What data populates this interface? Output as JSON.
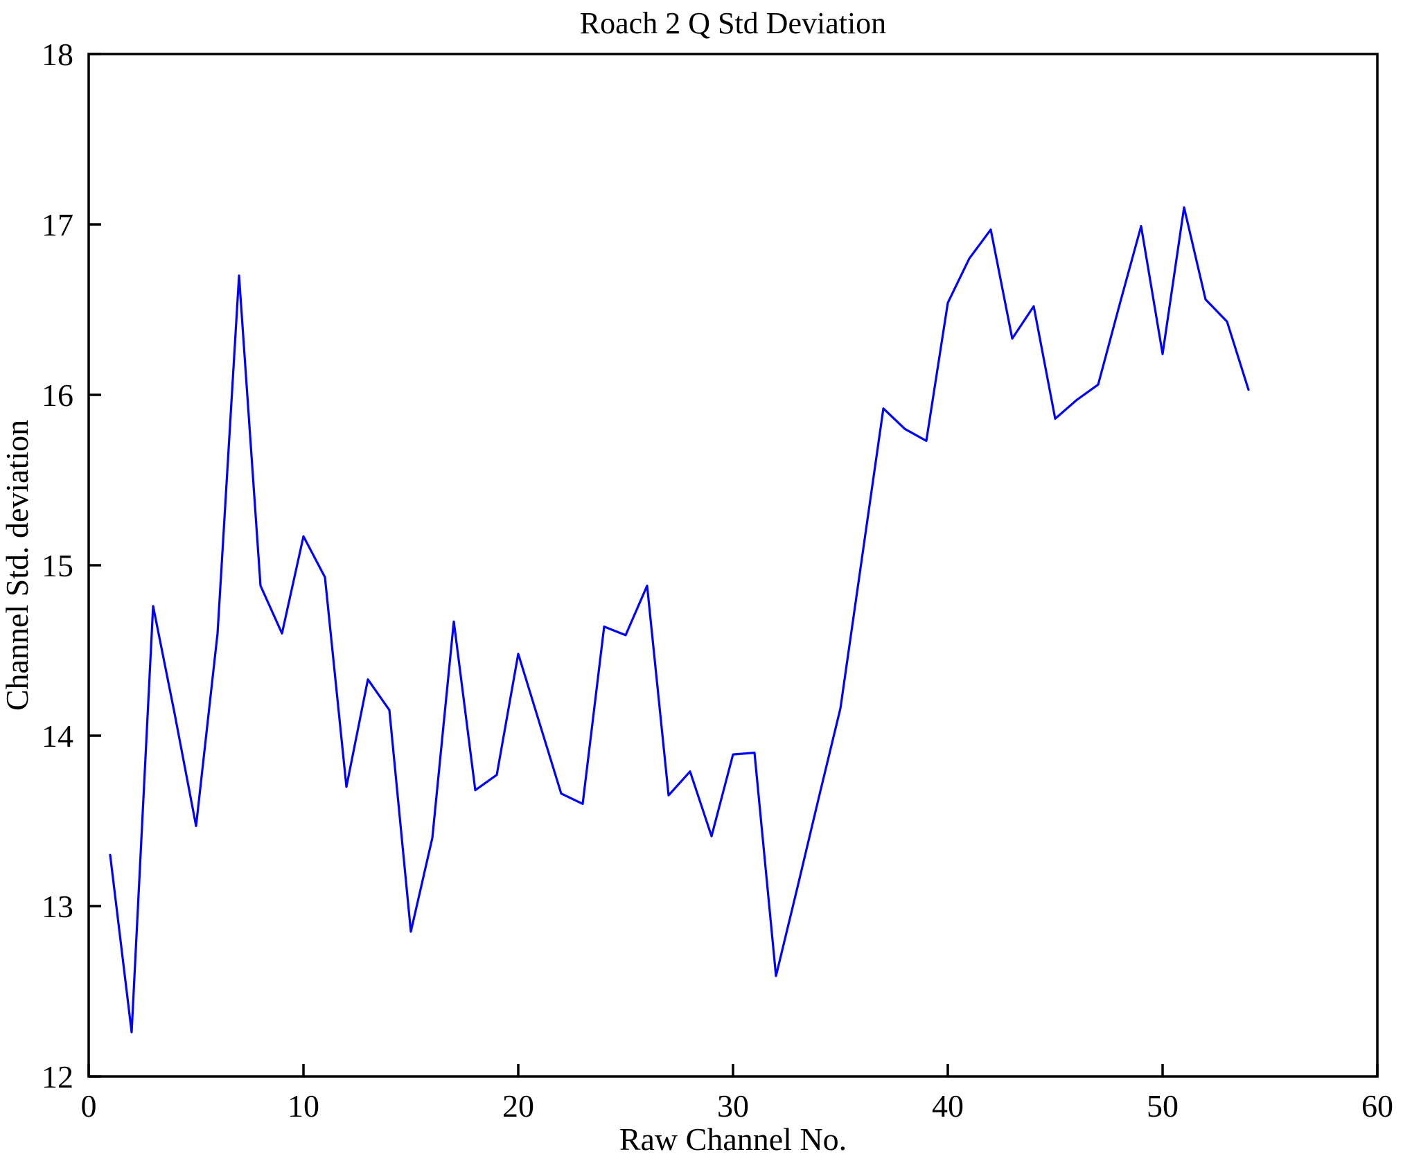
{
  "figure": {
    "background": "#ffffff",
    "axes_color": "#000000"
  },
  "chart_data": {
    "type": "line",
    "title": "Roach 2 Q Std Deviation",
    "xlabel": "Raw Channel No.",
    "ylabel": "Channel Std. deviation",
    "xlim": [
      0,
      60
    ],
    "ylim": [
      12,
      18
    ],
    "xticks": [
      0,
      10,
      20,
      30,
      40,
      50,
      60
    ],
    "yticks": [
      12,
      13,
      14,
      15,
      16,
      17,
      18
    ],
    "grid": false,
    "legend_position": "none",
    "line_color": "#0000ff",
    "x": [
      1,
      2,
      3,
      4,
      5,
      6,
      7,
      8,
      9,
      10,
      11,
      12,
      13,
      14,
      15,
      16,
      17,
      18,
      19,
      20,
      21,
      22,
      23,
      24,
      25,
      26,
      27,
      28,
      29,
      30,
      31,
      32,
      33,
      34,
      35,
      36,
      37,
      38,
      39,
      40,
      41,
      42,
      43,
      44,
      45,
      46,
      47,
      48,
      49,
      50,
      51,
      52,
      53,
      54
    ],
    "values": [
      13.3,
      12.26,
      14.76,
      14.13,
      13.47,
      14.6,
      16.7,
      14.88,
      14.6,
      15.17,
      14.93,
      13.7,
      14.33,
      14.15,
      12.85,
      13.4,
      14.67,
      13.68,
      13.77,
      14.48,
      14.07,
      13.66,
      13.6,
      14.64,
      14.59,
      14.88,
      13.65,
      13.79,
      13.41,
      13.89,
      13.9,
      12.59,
      13.11,
      13.64,
      14.16,
      15.04,
      15.92,
      15.8,
      15.73,
      16.54,
      16.8,
      16.97,
      16.33,
      16.52,
      15.86,
      15.97,
      16.06,
      16.53,
      16.99,
      16.24,
      17.1,
      16.56,
      16.43,
      16.03
    ]
  }
}
